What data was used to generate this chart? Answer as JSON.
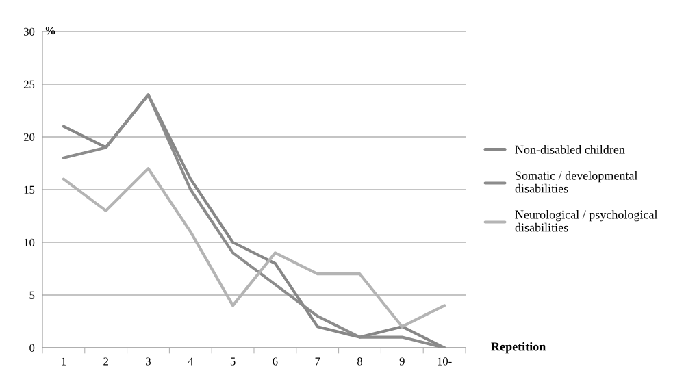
{
  "chart_data": {
    "type": "line",
    "ylabel": "%",
    "xlabel": "Repetition",
    "categories": [
      "1",
      "2",
      "3",
      "4",
      "5",
      "6",
      "7",
      "8",
      "9",
      "10-"
    ],
    "series": [
      {
        "name": "Non-disabled children",
        "color": "#878787",
        "values": [
          21,
          19,
          24,
          16,
          10,
          8,
          2,
          1,
          2,
          0
        ]
      },
      {
        "name": "Somatic / developmental\ndisabilities",
        "color": "#8c8c8c",
        "values": [
          18,
          19,
          24,
          15,
          9,
          6,
          3,
          1,
          1,
          0
        ]
      },
      {
        "name": "Neurological / psychological\ndisabilities",
        "color": "#b4b4b4",
        "values": [
          16,
          13,
          17,
          11,
          4,
          9,
          7,
          7,
          2,
          4
        ]
      }
    ],
    "ylim": [
      0,
      30
    ],
    "yticks": [
      0,
      5,
      10,
      15,
      20,
      25,
      30
    ],
    "grid": "y",
    "legend": "right",
    "marker": "none",
    "line_style": "solid"
  }
}
